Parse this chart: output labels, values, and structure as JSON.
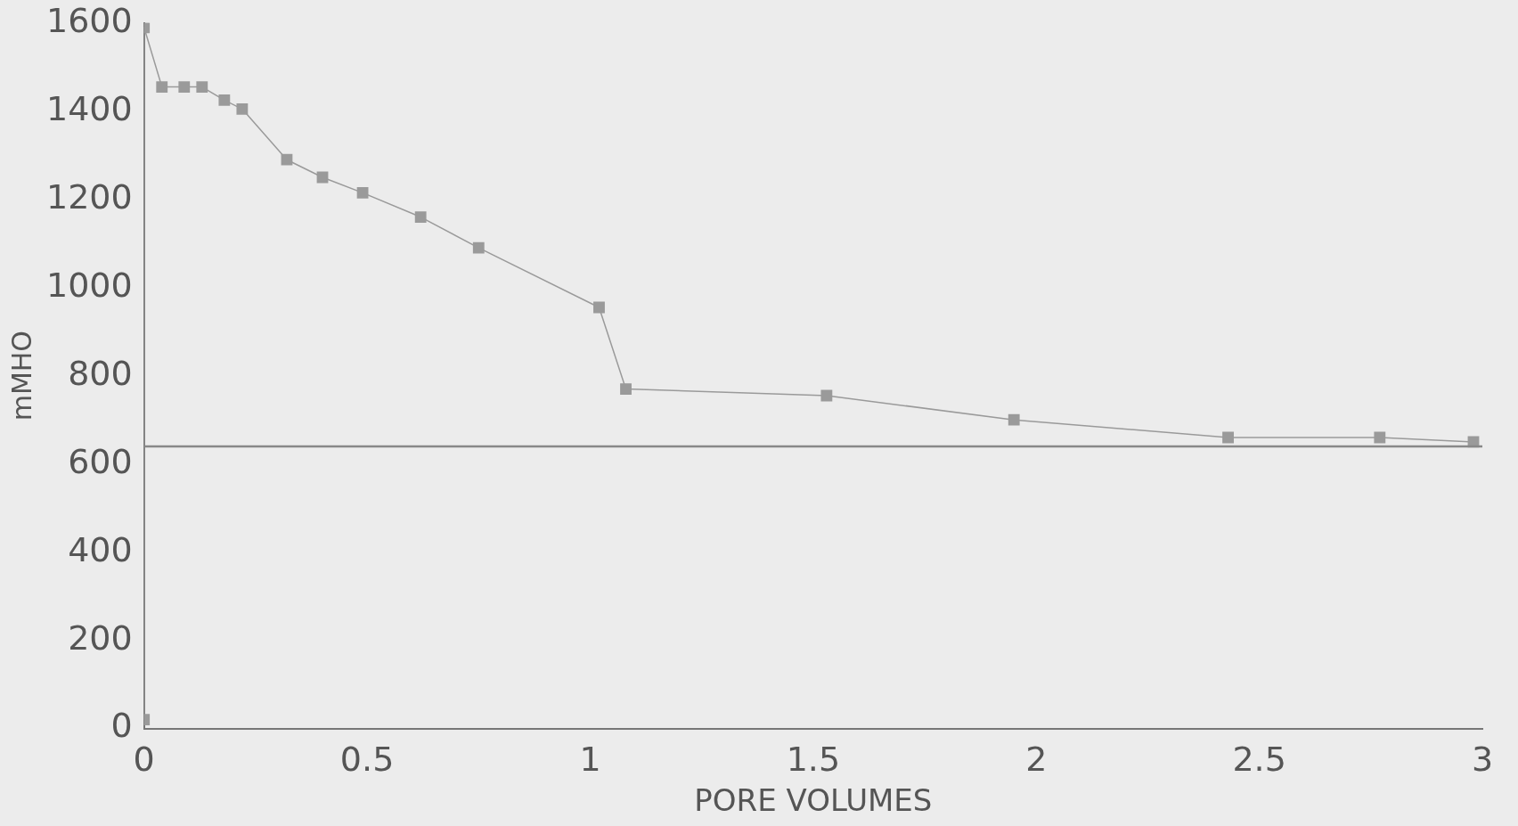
{
  "chart_data": {
    "type": "line",
    "xlabel": "PORE VOLUMES",
    "ylabel": "mMHO",
    "x": [
      0,
      0,
      0.04,
      0.09,
      0.13,
      0.18,
      0.22,
      0.32,
      0.4,
      0.49,
      0.62,
      0.75,
      1.02,
      1.08,
      1.53,
      1.95,
      2.43,
      2.77,
      2.98
    ],
    "series": [
      {
        "color": "#9a9a9a",
        "values": [
          20,
          1590,
          1455,
          1455,
          1455,
          1425,
          1405,
          1290,
          1250,
          1215,
          1160,
          1090,
          955,
          770,
          755,
          700,
          660,
          660,
          650
        ]
      }
    ],
    "xlim": [
      0,
      3
    ],
    "xticks": [
      0,
      0.5,
      1,
      1.5,
      2,
      2.5,
      3
    ],
    "ylim": [
      0,
      1600
    ],
    "yticks": [
      0,
      200,
      400,
      600,
      800,
      1000,
      1200,
      1400,
      1600
    ],
    "ref_lines": [
      {
        "axis": "y",
        "value": 640,
        "color": "#888888",
        "line_style": "solid"
      }
    ],
    "grid": false,
    "legend": false,
    "marker": "square",
    "line_style": "solid"
  }
}
